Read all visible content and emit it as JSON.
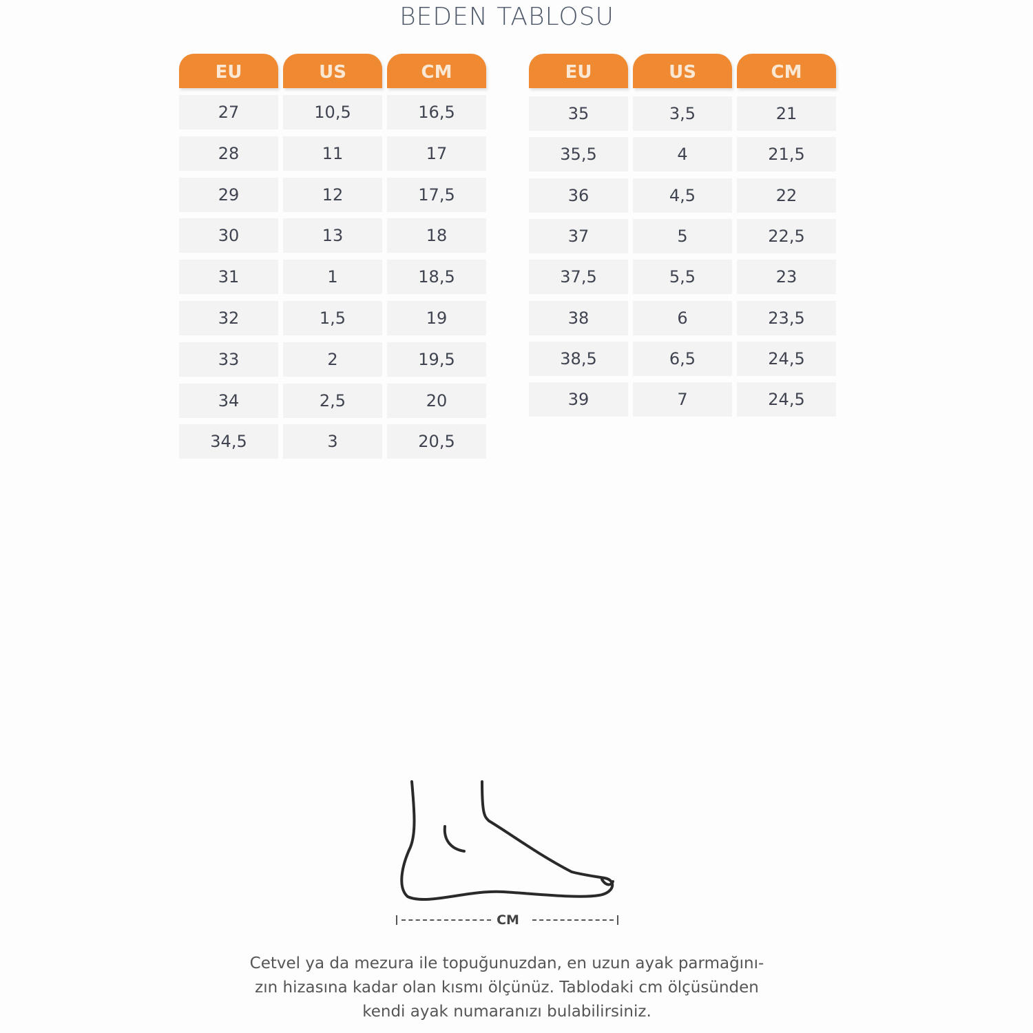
{
  "title": "BEDEN TABLOSU",
  "headers": [
    "EU",
    "US",
    "CM"
  ],
  "colors": {
    "header": "#ef8a33",
    "cell": "#f3f3f3"
  },
  "left_table": [
    [
      "27",
      "10,5",
      "16,5"
    ],
    [
      "28",
      "11",
      "17"
    ],
    [
      "29",
      "12",
      "17,5"
    ],
    [
      "30",
      "13",
      "18"
    ],
    [
      "31",
      "1",
      "18,5"
    ],
    [
      "32",
      "1,5",
      "19"
    ],
    [
      "33",
      "2",
      "19,5"
    ],
    [
      "34",
      "2,5",
      "20"
    ],
    [
      "34,5",
      "3",
      "20,5"
    ]
  ],
  "right_table": [
    [
      "35",
      "3,5",
      "21"
    ],
    [
      "35,5",
      "4",
      "21,5"
    ],
    [
      "36",
      "4,5",
      "22"
    ],
    [
      "37",
      "5",
      "22,5"
    ],
    [
      "37,5",
      "5,5",
      "23"
    ],
    [
      "38",
      "6",
      "23,5"
    ],
    [
      "38,5",
      "6,5",
      "24,5"
    ],
    [
      "39",
      "7",
      "24,5"
    ]
  ],
  "diagram": {
    "icon": "foot-measure-icon",
    "label": "CM"
  },
  "note": [
    "Cetvel ya da mezura ile topuğunuzdan, en uzun ayak parmağını-",
    "zın hizasına kadar olan kısmı ölçünüz. Tablodaki cm ölçüsünden",
    "kendi ayak numaranızı bulabilirsiniz."
  ]
}
